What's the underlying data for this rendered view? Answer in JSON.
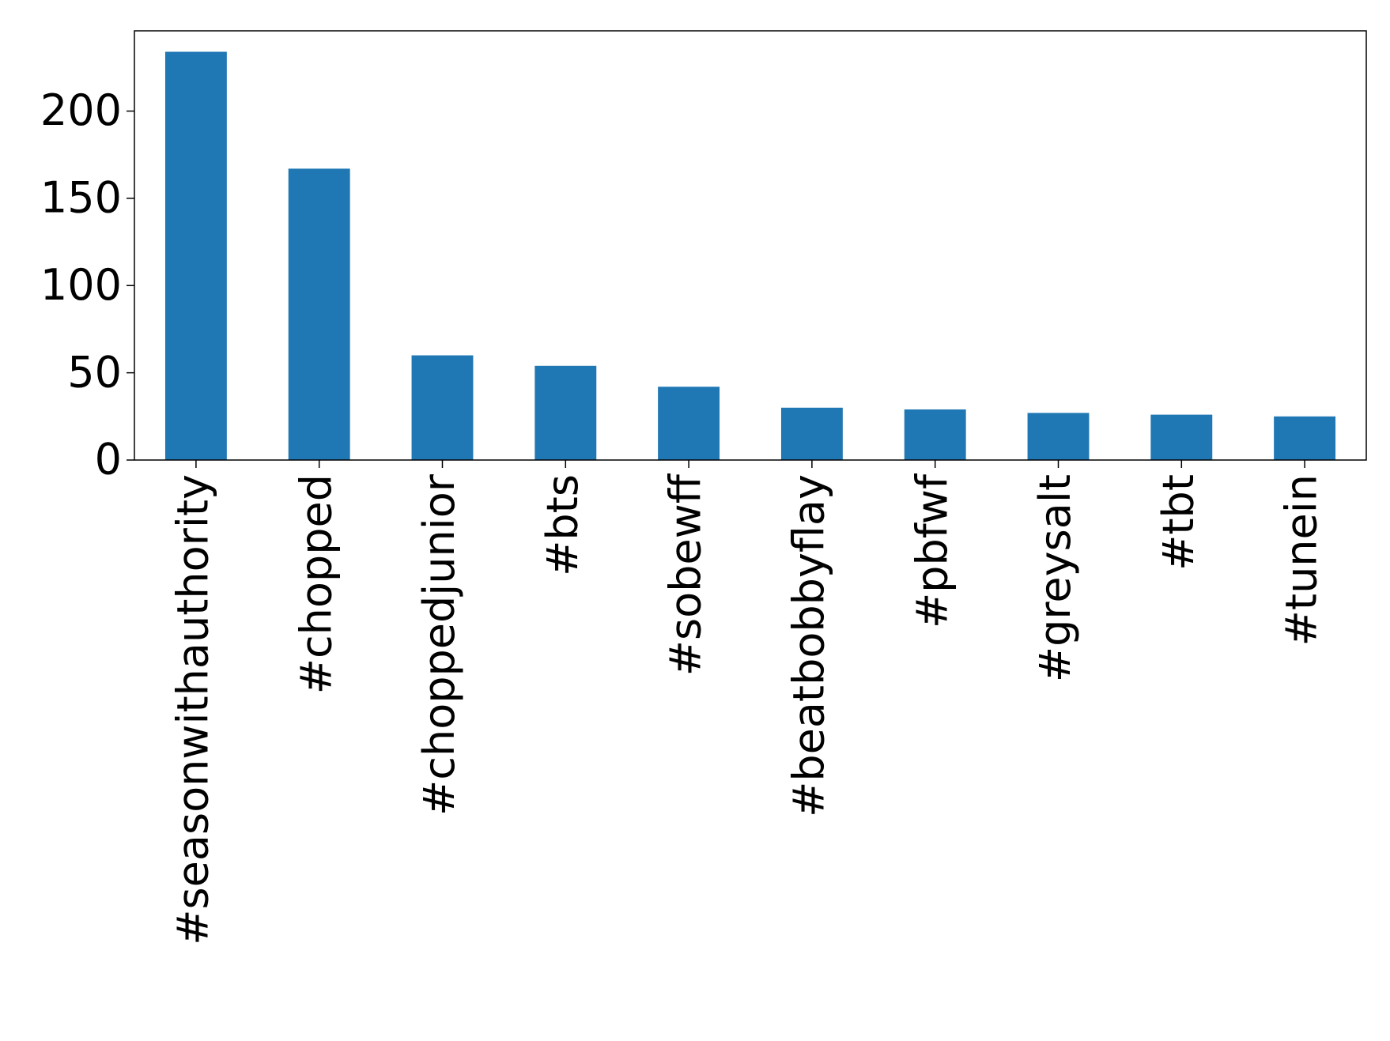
{
  "chart_data": {
    "type": "bar",
    "categories": [
      "#seasonwithauthority",
      "#chopped",
      "#choppedjunior",
      "#bts",
      "#sobewff",
      "#beatbobbyflay",
      "#pbfwf",
      "#greysalt",
      "#tbt",
      "#tunein"
    ],
    "values": [
      234,
      167,
      60,
      54,
      42,
      30,
      29,
      27,
      26,
      25
    ],
    "color": "#1f77b4",
    "ylim": [
      0,
      246
    ],
    "yticks": [
      0,
      50,
      100,
      150,
      200
    ],
    "grid": false
  }
}
